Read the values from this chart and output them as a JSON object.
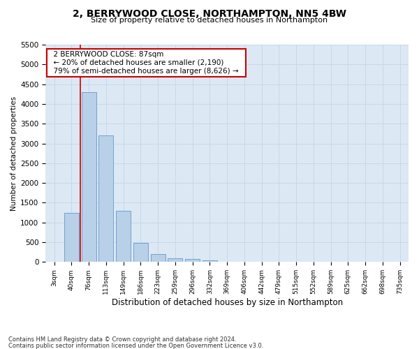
{
  "title": "2, BERRYWOOD CLOSE, NORTHAMPTON, NN5 4BW",
  "subtitle": "Size of property relative to detached houses in Northampton",
  "xlabel": "Distribution of detached houses by size in Northampton",
  "ylabel": "Number of detached properties",
  "footer_line1": "Contains HM Land Registry data © Crown copyright and database right 2024.",
  "footer_line2": "Contains public sector information licensed under the Open Government Licence v3.0.",
  "categories": [
    "3sqm",
    "40sqm",
    "76sqm",
    "113sqm",
    "149sqm",
    "186sqm",
    "223sqm",
    "259sqm",
    "296sqm",
    "332sqm",
    "369sqm",
    "406sqm",
    "442sqm",
    "479sqm",
    "515sqm",
    "552sqm",
    "589sqm",
    "625sqm",
    "662sqm",
    "698sqm",
    "735sqm"
  ],
  "values": [
    0,
    1250,
    4300,
    3200,
    1300,
    480,
    200,
    100,
    75,
    50,
    0,
    0,
    0,
    0,
    0,
    0,
    0,
    0,
    0,
    0,
    0
  ],
  "bar_color": "#b8d0e8",
  "bar_edge_color": "#6699cc",
  "ylim": [
    0,
    5500
  ],
  "yticks": [
    0,
    500,
    1000,
    1500,
    2000,
    2500,
    3000,
    3500,
    4000,
    4500,
    5000,
    5500
  ],
  "annotation_text": "  2 BERRYWOOD CLOSE: 87sqm  \n  ← 20% of detached houses are smaller (2,190)  \n  79% of semi-detached houses are larger (8,626) →  ",
  "annotation_box_color": "#ffffff",
  "annotation_box_edge_color": "#cc0000",
  "vline_color": "#cc0000",
  "vline_x": 1.5,
  "grid_color": "#c8d8e8",
  "background_color": "#dce8f4"
}
